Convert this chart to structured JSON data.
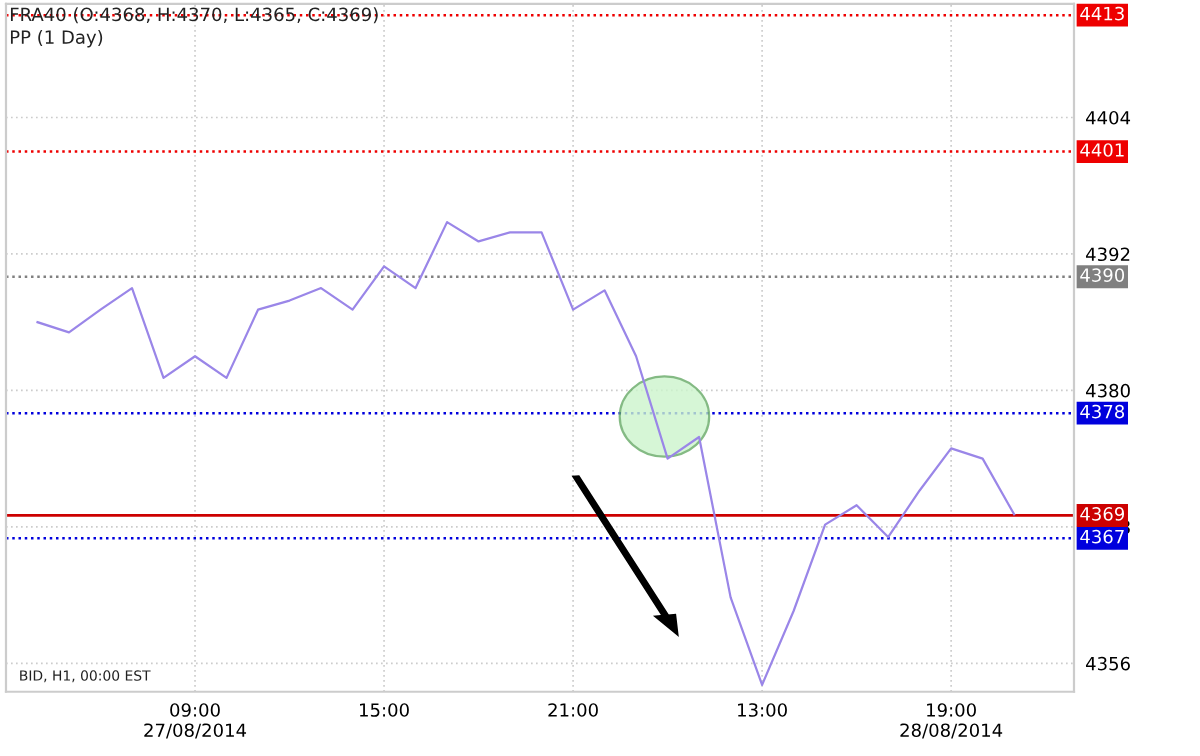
{
  "chart_data": {
    "type": "line",
    "annotations": [
      "FRA40 (O:4368, H:4370, L:4365, C:4369)",
      "PP (1 Day)",
      "BID, H1, 00:00 EST"
    ],
    "categories": [
      null,
      null,
      null,
      null,
      null,
      "09:00\n27/08/2014",
      null,
      null,
      null,
      null,
      null,
      "15:00",
      null,
      null,
      null,
      null,
      null,
      "21:00",
      null,
      null,
      null,
      null,
      null,
      "13:00",
      null,
      null,
      null,
      null,
      null,
      "19:00\n28/08/2014",
      null,
      null
    ],
    "series": [
      {
        "values": [
          4386.0,
          4385.1,
          4387.1,
          4389.0,
          4381.1,
          4383.0,
          4381.1,
          4387.1,
          4387.9,
          4389.0,
          4387.1,
          4390.9,
          4389.0,
          4394.8,
          4393.1,
          4393.9,
          4393.9,
          4387.1,
          4388.8,
          4383.0,
          4374.0,
          4375.9,
          4361.8,
          4354.1,
          4360.6,
          4368.2,
          4369.9,
          4367.1,
          4371.2,
          4374.9,
          4374.0,
          4369.1
        ],
        "color": "#9a86e8"
      }
    ],
    "ylim": [
      4353.5,
      4414
    ],
    "yticks": [
      4356,
      4368,
      4380,
      4392,
      4404
    ],
    "ref_lines": [
      {
        "axis": "y",
        "value": 4413,
        "label": "4413",
        "color": "#ee0000",
        "line_style": "dotted"
      },
      {
        "axis": "y",
        "value": 4401,
        "label": "4401",
        "color": "#ee0000",
        "line_style": "dotted"
      },
      {
        "axis": "y",
        "value": 4390,
        "label": "4390",
        "color": "#808080",
        "line_style": "dotted"
      },
      {
        "axis": "y",
        "value": 4378,
        "label": "4378",
        "color": "#0000dd",
        "line_style": "dotted"
      },
      {
        "axis": "y",
        "value": 4367,
        "label": "4367",
        "color": "#0000dd",
        "line_style": "dotted"
      },
      {
        "axis": "y",
        "value": 4369,
        "label": "4369",
        "color": "#cc0000",
        "line_style": "solid"
      }
    ],
    "grid": true
  }
}
